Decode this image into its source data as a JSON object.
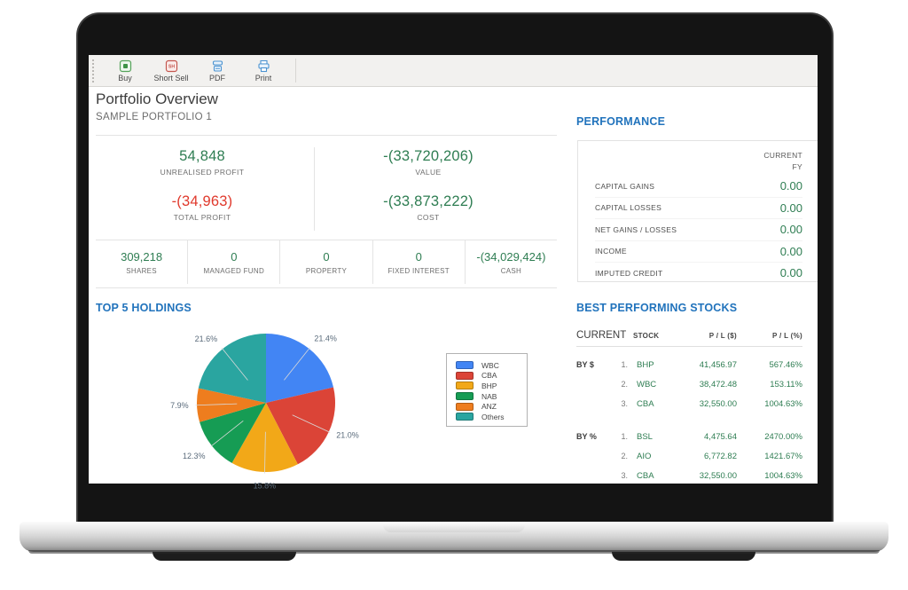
{
  "toolbar": {
    "items": [
      {
        "label": "Buy"
      },
      {
        "label": "Short Sell"
      },
      {
        "label": "PDF"
      },
      {
        "label": "Print"
      }
    ]
  },
  "header": {
    "title": "Portfolio Overview",
    "subtitle": "SAMPLE PORTFOLIO 1"
  },
  "summary": {
    "primary": [
      {
        "value": "54,848",
        "label": "UNREALISED PROFIT",
        "color": "green"
      },
      {
        "value": "-(33,720,206)",
        "label": "VALUE",
        "color": "green"
      },
      {
        "value": "-(34,963)",
        "label": "TOTAL PROFIT",
        "color": "red"
      },
      {
        "value": "-(33,873,222)",
        "label": "COST",
        "color": "green"
      }
    ],
    "secondary": [
      {
        "value": "309,218",
        "label": "SHARES"
      },
      {
        "value": "0",
        "label": "MANAGED FUND"
      },
      {
        "value": "0",
        "label": "PROPERTY"
      },
      {
        "value": "0",
        "label": "FIXED INTEREST"
      },
      {
        "value": "-(34,029,424)",
        "label": "CASH"
      }
    ]
  },
  "holdings": {
    "title": "TOP 5 HOLDINGS"
  },
  "chart_data": {
    "type": "pie",
    "title": "TOP 5 HOLDINGS",
    "labels": [
      "WBC",
      "CBA",
      "BHP",
      "NAB",
      "ANZ",
      "Others"
    ],
    "values": [
      21.4,
      21.0,
      15.8,
      12.3,
      7.9,
      21.6
    ],
    "colors": [
      "#4285F4",
      "#DB4437",
      "#F2A818",
      "#169C54",
      "#EE7D1E",
      "#2AA5A0"
    ],
    "label_format": "percent",
    "legend_position": "right",
    "start_angle_deg": 0,
    "direction": "clockwise"
  },
  "performance": {
    "title": "PERFORMANCE",
    "column_header": {
      "line1": "CURRENT",
      "line2": "FY"
    },
    "rows": [
      {
        "label": "CAPITAL GAINS",
        "value": "0.00"
      },
      {
        "label": "CAPITAL LOSSES",
        "value": "0.00"
      },
      {
        "label": "NET GAINS / LOSSES",
        "value": "0.00"
      },
      {
        "label": "INCOME",
        "value": "0.00"
      },
      {
        "label": "IMPUTED CREDIT",
        "value": "0.00"
      }
    ]
  },
  "best_stocks": {
    "title": "BEST PERFORMING STOCKS",
    "columns": {
      "current": "CURRENT",
      "stock": "STOCK",
      "pl_dollar": "P / L  ($)",
      "pl_pct": "P / L (%)"
    },
    "groups": [
      {
        "label": "BY $",
        "rows": [
          {
            "rank": "1.",
            "stock": "BHP",
            "pl_dollar": "41,456.97",
            "pl_pct": "567.46%"
          },
          {
            "rank": "2.",
            "stock": "WBC",
            "pl_dollar": "38,472.48",
            "pl_pct": "153.11%"
          },
          {
            "rank": "3.",
            "stock": "CBA",
            "pl_dollar": "32,550.00",
            "pl_pct": "1004.63%"
          }
        ]
      },
      {
        "label": "BY %",
        "rows": [
          {
            "rank": "1.",
            "stock": "BSL",
            "pl_dollar": "4,475.64",
            "pl_pct": "2470.00%"
          },
          {
            "rank": "2.",
            "stock": "AIO",
            "pl_dollar": "6,772.82",
            "pl_pct": "1421.67%"
          },
          {
            "rank": "3.",
            "stock": "CBA",
            "pl_dollar": "32,550.00",
            "pl_pct": "1004.63%"
          }
        ]
      }
    ]
  },
  "colors": {
    "value_green": "#2E7D52",
    "value_red": "#E0392C",
    "accent_blue": "#2173BC"
  }
}
